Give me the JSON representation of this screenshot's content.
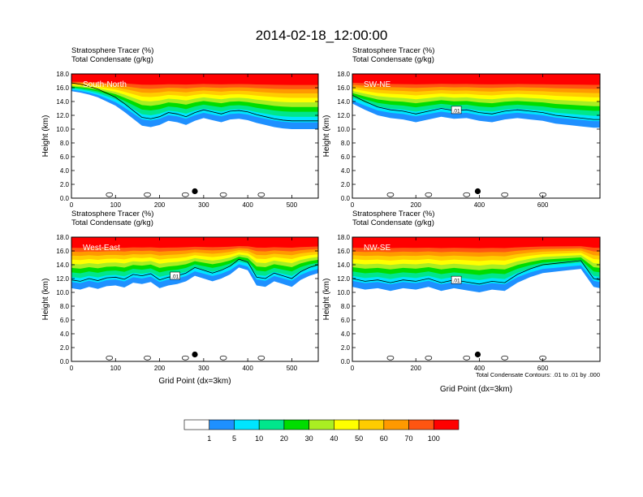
{
  "title": "2014-02-18_12:00:00",
  "chart_data": [
    {
      "type": "area",
      "panel_label": "South-North",
      "title_lines": [
        "Stratosphere Tracer   (%)",
        "Total Condensate   (g/kg)"
      ],
      "ylabel": "Height (km)",
      "xlabel": "",
      "xlim": [
        0,
        560
      ],
      "ylim": [
        0,
        18
      ],
      "xticks": [
        "0",
        "100",
        "200",
        "300",
        "400",
        "500"
      ],
      "yticks": [
        "0.0",
        "2.0",
        "4.0",
        "6.0",
        "8.0",
        "10.0",
        "12.0",
        "14.0",
        "16.0",
        "18.0"
      ],
      "tracer_bottom_km": {
        "x": [
          0,
          20,
          40,
          60,
          80,
          100,
          120,
          140,
          160,
          180,
          200,
          220,
          240,
          260,
          280,
          300,
          320,
          340,
          360,
          380,
          400,
          420,
          440,
          460,
          480,
          500,
          520,
          540,
          560
        ],
        "y": [
          15.5,
          15.3,
          15.0,
          14.6,
          14.0,
          13.4,
          12.5,
          11.5,
          10.5,
          10.3,
          10.6,
          11.2,
          11.0,
          10.6,
          11.2,
          11.6,
          11.3,
          11.0,
          11.4,
          11.5,
          11.3,
          10.9,
          10.6,
          10.3,
          10.1,
          10.0,
          10.0,
          10.0,
          10.0
        ]
      },
      "condensate_contour_label": "",
      "dot": {
        "x": 280,
        "y": 1.0
      }
    },
    {
      "type": "area",
      "panel_label": "SW-NE",
      "title_lines": [
        "Stratosphere Tracer   (%)",
        "Total Condensate   (g/kg)"
      ],
      "ylabel": "Height (km)",
      "xlabel": "",
      "xlim": [
        0,
        780
      ],
      "ylim": [
        0,
        18
      ],
      "xticks": [
        "0",
        "200",
        "400",
        "600"
      ],
      "yticks": [
        "0.0",
        "2.0",
        "4.0",
        "6.0",
        "8.0",
        "10.0",
        "12.0",
        "14.0",
        "16.0",
        "18.0"
      ],
      "tracer_bottom_km": {
        "x": [
          0,
          40,
          80,
          120,
          160,
          200,
          240,
          280,
          320,
          360,
          400,
          440,
          480,
          520,
          560,
          600,
          640,
          680,
          720,
          760,
          780
        ],
        "y": [
          13.7,
          12.8,
          12.0,
          11.6,
          11.4,
          11.0,
          11.4,
          11.8,
          11.5,
          11.6,
          11.2,
          11.0,
          11.4,
          11.6,
          11.4,
          11.2,
          10.8,
          10.6,
          10.4,
          10.2,
          10.2
        ]
      },
      "condensate_contour_label": ".01",
      "dot": {
        "x": 395,
        "y": 1.0
      }
    },
    {
      "type": "area",
      "panel_label": "West-East",
      "title_lines": [
        "Stratosphere Tracer   (%)",
        "Total Condensate   (g/kg)"
      ],
      "ylabel": "Height (km)",
      "xlabel": "Grid Point (dx=3km)",
      "xlim": [
        0,
        560
      ],
      "ylim": [
        0,
        18
      ],
      "xticks": [
        "0",
        "100",
        "200",
        "300",
        "400",
        "500"
      ],
      "yticks": [
        "0.0",
        "2.0",
        "4.0",
        "6.0",
        "8.0",
        "10.0",
        "12.0",
        "14.0",
        "16.0",
        "18.0"
      ],
      "tracer_bottom_km": {
        "x": [
          0,
          20,
          40,
          60,
          80,
          100,
          120,
          140,
          160,
          180,
          200,
          220,
          240,
          260,
          280,
          300,
          320,
          340,
          360,
          380,
          400,
          420,
          440,
          460,
          480,
          500,
          520,
          540,
          560
        ],
        "y": [
          10.6,
          10.4,
          10.8,
          10.5,
          10.9,
          11.0,
          10.7,
          11.4,
          11.2,
          11.5,
          10.6,
          11.0,
          11.2,
          11.6,
          12.4,
          12.0,
          11.6,
          12.0,
          12.6,
          13.6,
          13.2,
          11.0,
          10.8,
          11.6,
          11.2,
          10.8,
          11.8,
          12.4,
          12.8
        ]
      },
      "condensate_contour_label": ".01",
      "dot": {
        "x": 280,
        "y": 1.0
      }
    },
    {
      "type": "area",
      "panel_label": "NW-SE",
      "title_lines": [
        "Stratosphere Tracer   (%)",
        "Total Condensate   (g/kg)"
      ],
      "ylabel": "Height (km)",
      "xlabel": "Grid Point (dx=3km)",
      "xlim": [
        0,
        780
      ],
      "ylim": [
        0,
        18
      ],
      "xticks": [
        "0",
        "200",
        "400",
        "600"
      ],
      "yticks": [
        "0.0",
        "2.0",
        "4.0",
        "6.0",
        "8.0",
        "10.0",
        "12.0",
        "14.0",
        "16.0",
        "18.0"
      ],
      "tracer_bottom_km": {
        "x": [
          0,
          40,
          80,
          120,
          160,
          200,
          240,
          280,
          320,
          360,
          400,
          440,
          480,
          520,
          560,
          600,
          640,
          680,
          720,
          760,
          780
        ],
        "y": [
          10.8,
          10.4,
          10.6,
          10.2,
          10.6,
          10.4,
          10.8,
          10.2,
          10.6,
          10.3,
          10.0,
          10.4,
          10.2,
          11.4,
          12.2,
          12.8,
          13.0,
          13.2,
          13.4,
          10.8,
          10.6
        ]
      },
      "condensate_contour_label": ".01",
      "dot": {
        "x": 395,
        "y": 1.0
      }
    }
  ],
  "contour_note": "Total Condensate Contours: .01 to .01 by .000",
  "colorbar": {
    "labels": [
      "1",
      "5",
      "10",
      "20",
      "30",
      "40",
      "50",
      "60",
      "70",
      "100"
    ],
    "colors": [
      "#ffffff",
      "#1e90ff",
      "#00e5ff",
      "#00e68c",
      "#00dd00",
      "#aaee22",
      "#ffff00",
      "#ffcc00",
      "#ff9900",
      "#ff5511",
      "#ff0000"
    ]
  }
}
